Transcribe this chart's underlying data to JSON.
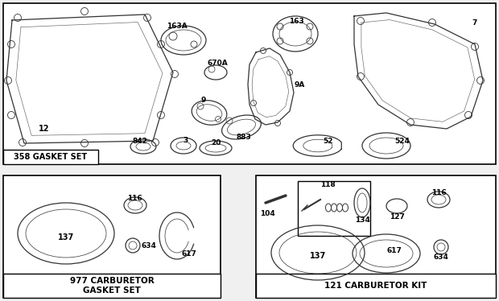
{
  "bg_color": "#f0f0f0",
  "box_color": "#ffffff",
  "border_color": "#000000",
  "part_color": "#333333",
  "text_color": "#000000",
  "gasket_set_label": "358 GASKET SET",
  "carb_gasket_label": "977 CARBURETOR\nGASKET SET",
  "carb_kit_label": "121 CARBURETOR KIT",
  "figw": 6.2,
  "figh": 3.74,
  "dpi": 100
}
